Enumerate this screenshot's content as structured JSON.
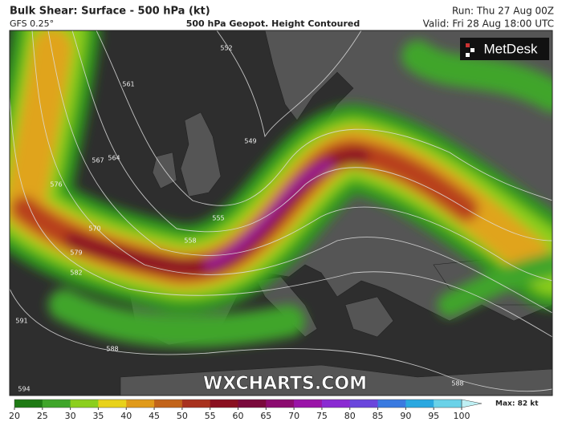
{
  "header": {
    "title": "Bulk Shear: Surface - 500 hPa (kt)",
    "model": "GFS 0.25°",
    "subtitle": "500 hPa Geopot. Height Contoured",
    "run": "Run: Thu 27 Aug 00Z",
    "valid": "Valid: Fri 28 Aug 18:00 UTC"
  },
  "logo": "MetDesk",
  "watermark": "WXCHARTS.COM",
  "contour_labels": [
    552,
    561,
    567,
    564,
    576,
    570,
    579,
    582,
    591,
    588,
    594,
    549,
    555,
    558,
    588
  ],
  "colorbar": {
    "ticks": [
      20,
      25,
      30,
      35,
      40,
      45,
      50,
      55,
      60,
      65,
      70,
      75,
      80,
      85,
      90,
      95,
      100
    ],
    "colors": [
      "#1e7a14",
      "#3fa52a",
      "#8ccf1e",
      "#e8d21a",
      "#e09a1a",
      "#c2641a",
      "#a8321e",
      "#8a1020",
      "#7a0a3c",
      "#8c0c70",
      "#9a14a8",
      "#8a2ad2",
      "#6a46dc",
      "#3a7ae0",
      "#2aa8e0",
      "#6ad2e8",
      "#bff0f4"
    ],
    "max_label": "Max: 82 kt"
  }
}
